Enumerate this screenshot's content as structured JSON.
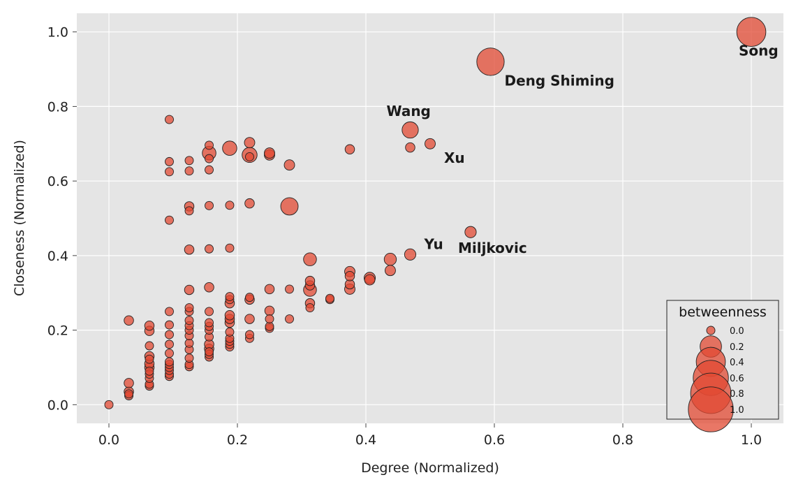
{
  "chart_data": {
    "type": "scatter",
    "xlabel": "Degree (Normalized)",
    "ylabel": "Closeness (Normalized)",
    "xlim": [
      -0.05,
      1.05
    ],
    "ylim": [
      -0.05,
      1.05
    ],
    "xticks": [
      0.0,
      0.2,
      0.4,
      0.6,
      0.8,
      1.0
    ],
    "yticks": [
      0.0,
      0.2,
      0.4,
      0.6,
      0.8,
      1.0
    ],
    "grid": true,
    "marker_color": "#E24A33",
    "background_color": "#E5E5E5",
    "size_variable": "betweenness",
    "legend": {
      "title": "betweenness",
      "placement": "lower-right",
      "values": [
        0.0,
        0.2,
        0.4,
        0.6,
        0.8,
        1.0
      ],
      "labels": [
        "0.0",
        "0.2",
        "0.4",
        "0.6",
        "0.8",
        "1.0"
      ]
    },
    "labeled_points": [
      {
        "label": "Song",
        "x": 1.0,
        "y": 1.0,
        "betweenness": 0.4
      },
      {
        "label": "Deng Shiming",
        "x": 0.594,
        "y": 0.92,
        "betweenness": 0.35
      },
      {
        "label": "Wang",
        "x": 0.469,
        "y": 0.737,
        "betweenness": 0.1
      },
      {
        "label": "Xu",
        "x": 0.5,
        "y": 0.7,
        "betweenness": 0.02
      },
      {
        "label": "Miljkovic",
        "x": 0.563,
        "y": 0.463,
        "betweenness": 0.03
      },
      {
        "label": "Yu",
        "x": 0.469,
        "y": 0.403,
        "betweenness": 0.03
      }
    ],
    "points": [
      [
        0.0,
        0.0,
        0
      ],
      [
        0.031,
        0.024,
        0
      ],
      [
        0.031,
        0.029,
        0
      ],
      [
        0.031,
        0.035,
        0.01
      ],
      [
        0.031,
        0.058,
        0.01
      ],
      [
        0.031,
        0.226,
        0.01
      ],
      [
        0.063,
        0.05,
        0
      ],
      [
        0.063,
        0.055,
        0
      ],
      [
        0.063,
        0.071,
        0
      ],
      [
        0.063,
        0.082,
        0
      ],
      [
        0.063,
        0.09,
        0
      ],
      [
        0.063,
        0.1,
        0.01
      ],
      [
        0.063,
        0.11,
        0.01
      ],
      [
        0.063,
        0.122,
        0
      ],
      [
        0.063,
        0.13,
        0.01
      ],
      [
        0.063,
        0.158,
        0
      ],
      [
        0.063,
        0.198,
        0.01
      ],
      [
        0.063,
        0.212,
        0.01
      ],
      [
        0.094,
        0.076,
        0
      ],
      [
        0.094,
        0.082,
        0
      ],
      [
        0.094,
        0.092,
        0
      ],
      [
        0.094,
        0.1,
        0
      ],
      [
        0.094,
        0.108,
        0
      ],
      [
        0.094,
        0.115,
        0
      ],
      [
        0.094,
        0.138,
        0
      ],
      [
        0.094,
        0.162,
        0
      ],
      [
        0.094,
        0.188,
        0
      ],
      [
        0.094,
        0.214,
        0
      ],
      [
        0.094,
        0.25,
        0
      ],
      [
        0.094,
        0.495,
        0
      ],
      [
        0.094,
        0.625,
        0
      ],
      [
        0.094,
        0.652,
        0
      ],
      [
        0.094,
        0.765,
        0
      ],
      [
        0.125,
        0.102,
        0
      ],
      [
        0.125,
        0.108,
        0
      ],
      [
        0.125,
        0.125,
        0
      ],
      [
        0.125,
        0.148,
        0
      ],
      [
        0.125,
        0.165,
        0
      ],
      [
        0.125,
        0.185,
        0
      ],
      [
        0.125,
        0.2,
        0
      ],
      [
        0.125,
        0.212,
        0
      ],
      [
        0.125,
        0.226,
        0
      ],
      [
        0.125,
        0.25,
        0
      ],
      [
        0.125,
        0.26,
        0
      ],
      [
        0.125,
        0.308,
        0.01
      ],
      [
        0.125,
        0.416,
        0.01
      ],
      [
        0.125,
        0.52,
        0
      ],
      [
        0.125,
        0.532,
        0.01
      ],
      [
        0.125,
        0.627,
        0
      ],
      [
        0.125,
        0.655,
        0
      ],
      [
        0.156,
        0.128,
        0
      ],
      [
        0.156,
        0.135,
        0
      ],
      [
        0.156,
        0.142,
        0
      ],
      [
        0.156,
        0.15,
        0.01
      ],
      [
        0.156,
        0.162,
        0.01
      ],
      [
        0.156,
        0.182,
        0
      ],
      [
        0.156,
        0.2,
        0
      ],
      [
        0.156,
        0.21,
        0
      ],
      [
        0.156,
        0.22,
        0
      ],
      [
        0.156,
        0.25,
        0
      ],
      [
        0.156,
        0.315,
        0.01
      ],
      [
        0.156,
        0.418,
        0
      ],
      [
        0.156,
        0.534,
        0
      ],
      [
        0.156,
        0.63,
        0
      ],
      [
        0.156,
        0.66,
        0
      ],
      [
        0.156,
        0.675,
        0.06
      ],
      [
        0.156,
        0.696,
        0
      ],
      [
        0.188,
        0.155,
        0
      ],
      [
        0.188,
        0.162,
        0
      ],
      [
        0.188,
        0.17,
        0
      ],
      [
        0.188,
        0.178,
        0
      ],
      [
        0.188,
        0.195,
        0
      ],
      [
        0.188,
        0.22,
        0.01
      ],
      [
        0.188,
        0.23,
        0.01
      ],
      [
        0.188,
        0.24,
        0.01
      ],
      [
        0.188,
        0.272,
        0.01
      ],
      [
        0.188,
        0.282,
        0
      ],
      [
        0.188,
        0.29,
        0
      ],
      [
        0.188,
        0.42,
        0
      ],
      [
        0.188,
        0.535,
        0
      ],
      [
        0.188,
        0.688,
        0.07
      ],
      [
        0.219,
        0.178,
        0
      ],
      [
        0.219,
        0.188,
        0
      ],
      [
        0.219,
        0.23,
        0.01
      ],
      [
        0.219,
        0.282,
        0.01
      ],
      [
        0.219,
        0.288,
        0
      ],
      [
        0.219,
        0.54,
        0.01
      ],
      [
        0.219,
        0.665,
        0
      ],
      [
        0.219,
        0.67,
        0.08
      ],
      [
        0.219,
        0.703,
        0.02
      ],
      [
        0.25,
        0.205,
        0
      ],
      [
        0.25,
        0.21,
        0
      ],
      [
        0.25,
        0.23,
        0
      ],
      [
        0.25,
        0.252,
        0.01
      ],
      [
        0.25,
        0.31,
        0.01
      ],
      [
        0.25,
        0.67,
        0.02
      ],
      [
        0.25,
        0.675,
        0.02
      ],
      [
        0.281,
        0.23,
        0
      ],
      [
        0.281,
        0.31,
        0
      ],
      [
        0.281,
        0.532,
        0.12
      ],
      [
        0.281,
        0.643,
        0.02
      ],
      [
        0.313,
        0.26,
        0
      ],
      [
        0.313,
        0.272,
        0.01
      ],
      [
        0.313,
        0.308,
        0.05
      ],
      [
        0.313,
        0.32,
        0.01
      ],
      [
        0.313,
        0.332,
        0.01
      ],
      [
        0.313,
        0.39,
        0.05
      ],
      [
        0.344,
        0.282,
        0
      ],
      [
        0.344,
        0.285,
        0
      ],
      [
        0.375,
        0.31,
        0.02
      ],
      [
        0.375,
        0.323,
        0.01
      ],
      [
        0.375,
        0.345,
        0.01
      ],
      [
        0.375,
        0.357,
        0.02
      ],
      [
        0.375,
        0.685,
        0.01
      ],
      [
        0.406,
        0.335,
        0.02
      ],
      [
        0.406,
        0.34,
        0.03
      ],
      [
        0.438,
        0.36,
        0.02
      ],
      [
        0.438,
        0.39,
        0.04
      ],
      [
        0.469,
        0.403,
        0.03
      ],
      [
        0.469,
        0.69,
        0.01
      ],
      [
        0.469,
        0.737,
        0.1
      ],
      [
        0.5,
        0.7,
        0.02
      ],
      [
        0.563,
        0.463,
        0.03
      ],
      [
        0.594,
        0.92,
        0.35
      ],
      [
        1.0,
        1.0,
        0.4
      ]
    ]
  }
}
